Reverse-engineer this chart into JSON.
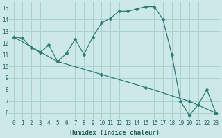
{
  "xlabel": "Humidex (Indice chaleur)",
  "ylabel": "",
  "bg_color": "#cce8e8",
  "grid_color": "#aad0d0",
  "line_color": "#2e7d6e",
  "xlim": [
    -0.5,
    23.5
  ],
  "ylim": [
    5.5,
    15.5
  ],
  "xticks": [
    0,
    1,
    2,
    3,
    4,
    5,
    6,
    7,
    8,
    9,
    10,
    11,
    12,
    13,
    14,
    15,
    16,
    17,
    18,
    19,
    20,
    21,
    22,
    23
  ],
  "yticks": [
    6,
    7,
    8,
    9,
    10,
    11,
    12,
    13,
    14,
    15
  ],
  "series1_x": [
    0,
    1,
    2,
    3,
    4,
    5,
    6,
    7,
    8,
    9,
    10,
    11,
    12,
    13,
    14,
    15,
    16,
    17,
    18,
    19,
    20,
    21,
    22,
    23
  ],
  "series1_y": [
    12.5,
    12.4,
    11.6,
    11.2,
    11.8,
    10.4,
    11.1,
    12.3,
    11.0,
    12.5,
    13.7,
    14.1,
    14.7,
    14.7,
    14.9,
    15.1,
    15.1,
    14.0,
    11.0,
    7.0,
    5.8,
    6.7,
    8.0,
    6.0
  ],
  "series2_x": [
    0,
    5,
    10,
    15,
    20,
    23
  ],
  "series2_y": [
    12.5,
    10.4,
    9.3,
    8.2,
    7.0,
    6.0
  ],
  "marker": "D",
  "markersize": 2.5,
  "linewidth": 0.9,
  "tick_fontsize": 5.5,
  "xlabel_fontsize": 6.5
}
